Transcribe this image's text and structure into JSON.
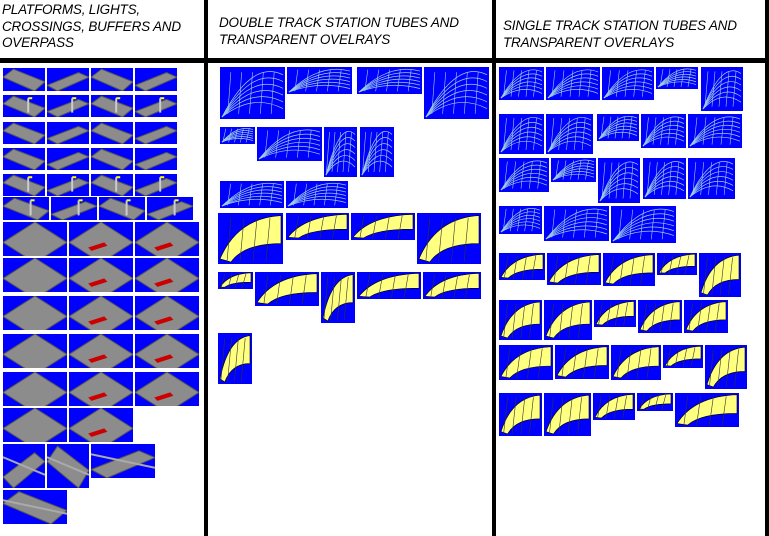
{
  "columns": [
    {
      "title": "PLATFORMS, LIGHTS,\nCROSSINGS, BUFFERS AND\nOVERPASS"
    },
    {
      "title": "DOUBLE TRACK STATION TUBES AND\nTRANSPARENT OVELRAYS"
    },
    {
      "title": "SINGLE TRACK STATION TUBES AND\nTRANSPARENT OVERLAYS"
    }
  ],
  "colors": {
    "sprite_background": "#0000ff",
    "platform_gray": "#8c8c8c",
    "wireframe": "#9fd0e0",
    "tube_yellow": "#ffff80",
    "divider": "#000000"
  }
}
